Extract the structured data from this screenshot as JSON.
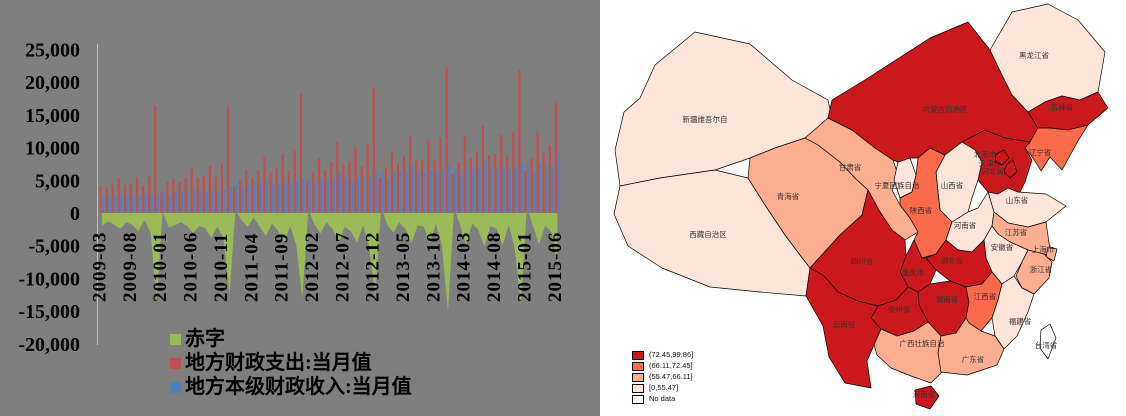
{
  "figure": {
    "left_background": "#7F7F7F",
    "right_background": "#FFFFFF",
    "text_color": "#000000",
    "axis_line_color": "#BFBFBF"
  },
  "chart_data": [
    {
      "type": "bar",
      "title": "",
      "xlabel": "",
      "ylabel": "",
      "ylim": [
        -20000,
        25000
      ],
      "ytick_step": 5000,
      "grid": false,
      "legend_position": "bottom-left",
      "ytick_values": [
        25000,
        20000,
        15000,
        10000,
        5000,
        0,
        -5000,
        -10000,
        -15000,
        -20000
      ],
      "yticks": [
        "25,000",
        "20,000",
        "15,000",
        "10,000",
        "5,000",
        "0",
        "-5,000",
        "-10,000",
        "-15,000",
        "-20,000"
      ],
      "xticks": [
        "2009-03",
        "2009-08",
        "2010-01",
        "2010-06",
        "2010-11",
        "2011-04",
        "2011-09",
        "2012-02",
        "2012-07",
        "2012-12",
        "2013-05",
        "2013-10",
        "2014-03",
        "2014-08",
        "2015-01",
        "2015-06"
      ],
      "x": [
        "2009-03",
        "2009-04",
        "2009-05",
        "2009-06",
        "2009-07",
        "2009-08",
        "2009-09",
        "2009-10",
        "2009-11",
        "2009-12",
        "2010-01",
        "2010-02",
        "2010-03",
        "2010-04",
        "2010-05",
        "2010-06",
        "2010-07",
        "2010-08",
        "2010-09",
        "2010-10",
        "2010-11",
        "2010-12",
        "2011-01",
        "2011-02",
        "2011-03",
        "2011-04",
        "2011-05",
        "2011-06",
        "2011-07",
        "2011-08",
        "2011-09",
        "2011-10",
        "2011-11",
        "2011-12",
        "2012-01",
        "2012-02",
        "2012-03",
        "2012-04",
        "2012-05",
        "2012-06",
        "2012-07",
        "2012-08",
        "2012-09",
        "2012-10",
        "2012-11",
        "2012-12",
        "2013-01",
        "2013-02",
        "2013-03",
        "2013-04",
        "2013-05",
        "2013-06",
        "2013-07",
        "2013-08",
        "2013-09",
        "2013-10",
        "2013-11",
        "2013-12",
        "2014-01",
        "2014-02",
        "2014-03",
        "2014-04",
        "2014-05",
        "2014-06",
        "2014-07",
        "2014-08",
        "2014-09",
        "2014-10",
        "2014-11",
        "2014-12",
        "2015-01",
        "2015-02",
        "2015-03",
        "2015-04",
        "2015-05",
        "2015-06"
      ],
      "series": [
        {
          "name": "地方财政支出:当月值",
          "type": "bar",
          "color": "#C0504D",
          "values": [
            4200,
            3900,
            4300,
            5400,
            4300,
            4400,
            5500,
            4200,
            5600,
            16400,
            3100,
            4800,
            5200,
            4800,
            5300,
            6800,
            5400,
            5600,
            7300,
            5500,
            7400,
            16500,
            4000,
            5000,
            6500,
            5300,
            6600,
            8600,
            6200,
            7000,
            9100,
            6500,
            9500,
            18300,
            4600,
            6200,
            8400,
            6600,
            7800,
            10900,
            7400,
            7900,
            10000,
            7300,
            10600,
            19000,
            5300,
            7000,
            9300,
            7600,
            8700,
            11900,
            8100,
            8200,
            11100,
            8000,
            11600,
            22300,
            6000,
            7700,
            11800,
            8300,
            9400,
            13400,
            8800,
            9000,
            12000,
            8700,
            12500,
            21800,
            6500,
            8300,
            12300,
            9200,
            10300,
            16800
          ]
        },
        {
          "name": "地方本级财政收入:当月值",
          "type": "bar",
          "color": "#4F81BD",
          "values": [
            2300,
            2600,
            2500,
            3000,
            2900,
            2600,
            2700,
            3100,
            2600,
            2900,
            3300,
            2600,
            3300,
            3400,
            3300,
            3700,
            3400,
            3300,
            3500,
            3400,
            3600,
            4100,
            4400,
            3900,
            4400,
            4600,
            4400,
            5100,
            4600,
            4300,
            4600,
            4500,
            4700,
            5300,
            5200,
            4400,
            5300,
            5200,
            5300,
            6400,
            5300,
            5100,
            5500,
            5400,
            5600,
            6200,
            6100,
            5200,
            6300,
            6200,
            6200,
            7300,
            6200,
            6100,
            6500,
            6400,
            6600,
            7200,
            6800,
            5800,
            6900,
            6700,
            6800,
            8300,
            6800,
            6600,
            7000,
            6900,
            7100,
            7600,
            7400,
            6300,
            7500,
            7300,
            7400,
            9100
          ]
        },
        {
          "name": "赤字",
          "type": "area",
          "color": "#9BBB59",
          "values": [
            -1900,
            -1300,
            -1800,
            -2400,
            -1400,
            -1800,
            -2800,
            -1100,
            -3000,
            -13500,
            200,
            -2200,
            -1900,
            -1400,
            -2000,
            -3100,
            -2000,
            -2300,
            -3800,
            -2100,
            -3800,
            -12400,
            400,
            -1100,
            -2100,
            -700,
            -2200,
            -3500,
            -1600,
            -2700,
            -4500,
            -2000,
            -4800,
            -13000,
            600,
            -1800,
            -3100,
            -1400,
            -2500,
            -4500,
            -2100,
            -2800,
            -4500,
            -1900,
            -5000,
            -12800,
            800,
            -1800,
            -3000,
            -1400,
            -2500,
            -4600,
            -1900,
            -2100,
            -4600,
            -1600,
            -5000,
            -15100,
            800,
            -1900,
            -4900,
            -1600,
            -2600,
            -5100,
            -2000,
            -2400,
            -5000,
            -1800,
            -5400,
            -14200,
            900,
            -2000,
            -4800,
            -1900,
            -2900,
            -7700
          ]
        }
      ],
      "legend_items": [
        {
          "label": "赤字",
          "color": "#9BBB59"
        },
        {
          "label": "地方财政支出:当月值",
          "color": "#C0504D"
        },
        {
          "label": "地方本级财政收入:当月值",
          "color": "#4F81BD"
        }
      ]
    },
    {
      "type": "choropleth",
      "region": "China provinces",
      "legend": [
        {
          "label": "(72.45,99.86]",
          "color": "#CB181D"
        },
        {
          "label": "(66.11,72.45]",
          "color": "#FB6A4A"
        },
        {
          "label": "(55.47,66.11]",
          "color": "#FCAE91"
        },
        {
          "label": "[0,55.47]",
          "color": "#FEE5D9"
        },
        {
          "label": "No data",
          "color": "#FFFFFF"
        }
      ],
      "provinces": [
        {
          "id": "xinjiang",
          "label": "新疆维吾尔自",
          "bucket": "[0,55.47]"
        },
        {
          "id": "tibet",
          "label": "西藏自治区",
          "bucket": "[0,55.47]"
        },
        {
          "id": "qinghai",
          "label": "青海省",
          "bucket": "(55.47,66.11]"
        },
        {
          "id": "gansu",
          "label": "甘肃省",
          "bucket": "(55.47,66.11]"
        },
        {
          "id": "ningxia",
          "label": "宁夏回族自治",
          "bucket": "[0,55.47]"
        },
        {
          "id": "inner_mongolia",
          "label": "内蒙古自治区",
          "bucket": "(72.45,99.86]"
        },
        {
          "id": "heilongjiang",
          "label": "黑龙江省",
          "bucket": "[0,55.47]"
        },
        {
          "id": "jilin",
          "label": "吉林省",
          "bucket": "(72.45,99.86]"
        },
        {
          "id": "liaoning",
          "label": "辽宁省",
          "bucket": "(66.11,72.45]"
        },
        {
          "id": "hebei",
          "label": "河北省",
          "bucket": "(72.45,99.86]"
        },
        {
          "id": "beijing",
          "label": "北京市",
          "bucket": "(72.45,99.86]"
        },
        {
          "id": "tianjin",
          "label": "天津市",
          "bucket": "(72.45,99.86]"
        },
        {
          "id": "shanxi",
          "label": "山西省",
          "bucket": "[0,55.47]"
        },
        {
          "id": "shandong",
          "label": "山东省",
          "bucket": "[0,55.47]"
        },
        {
          "id": "shaanxi",
          "label": "陕西省",
          "bucket": "(66.11,72.45]"
        },
        {
          "id": "henan",
          "label": "河南省",
          "bucket": "[0,55.47]"
        },
        {
          "id": "jiangsu",
          "label": "江苏省",
          "bucket": "(55.47,66.11]"
        },
        {
          "id": "anhui",
          "label": "安徽省",
          "bucket": "[0,55.47]"
        },
        {
          "id": "shanghai",
          "label": "上海市",
          "bucket": "(55.47,66.11]"
        },
        {
          "id": "zhejiang",
          "label": "浙江省",
          "bucket": "(55.47,66.11]"
        },
        {
          "id": "hubei",
          "label": "湖北省",
          "bucket": "(72.45,99.86]"
        },
        {
          "id": "chongqing",
          "label": "重庆市",
          "bucket": "(72.45,99.86]"
        },
        {
          "id": "sichuan",
          "label": "四川省",
          "bucket": "(72.45,99.86]"
        },
        {
          "id": "hunan",
          "label": "湖南省",
          "bucket": "(72.45,99.86]"
        },
        {
          "id": "jiangxi",
          "label": "江西省",
          "bucket": "(66.11,72.45]"
        },
        {
          "id": "fujian",
          "label": "福建省",
          "bucket": "[0,55.47]"
        },
        {
          "id": "guizhou",
          "label": "贵州省",
          "bucket": "(72.45,99.86]"
        },
        {
          "id": "yunnan",
          "label": "云南省",
          "bucket": "(72.45,99.86]"
        },
        {
          "id": "guangxi",
          "label": "广西壮族自治",
          "bucket": "(55.47,66.11]"
        },
        {
          "id": "guangdong",
          "label": "广东省",
          "bucket": "(55.47,66.11]"
        },
        {
          "id": "hainan",
          "label": "海南省",
          "bucket": "(72.45,99.86]"
        },
        {
          "id": "taiwan",
          "label": "台湾省",
          "bucket": "No data"
        }
      ]
    }
  ]
}
